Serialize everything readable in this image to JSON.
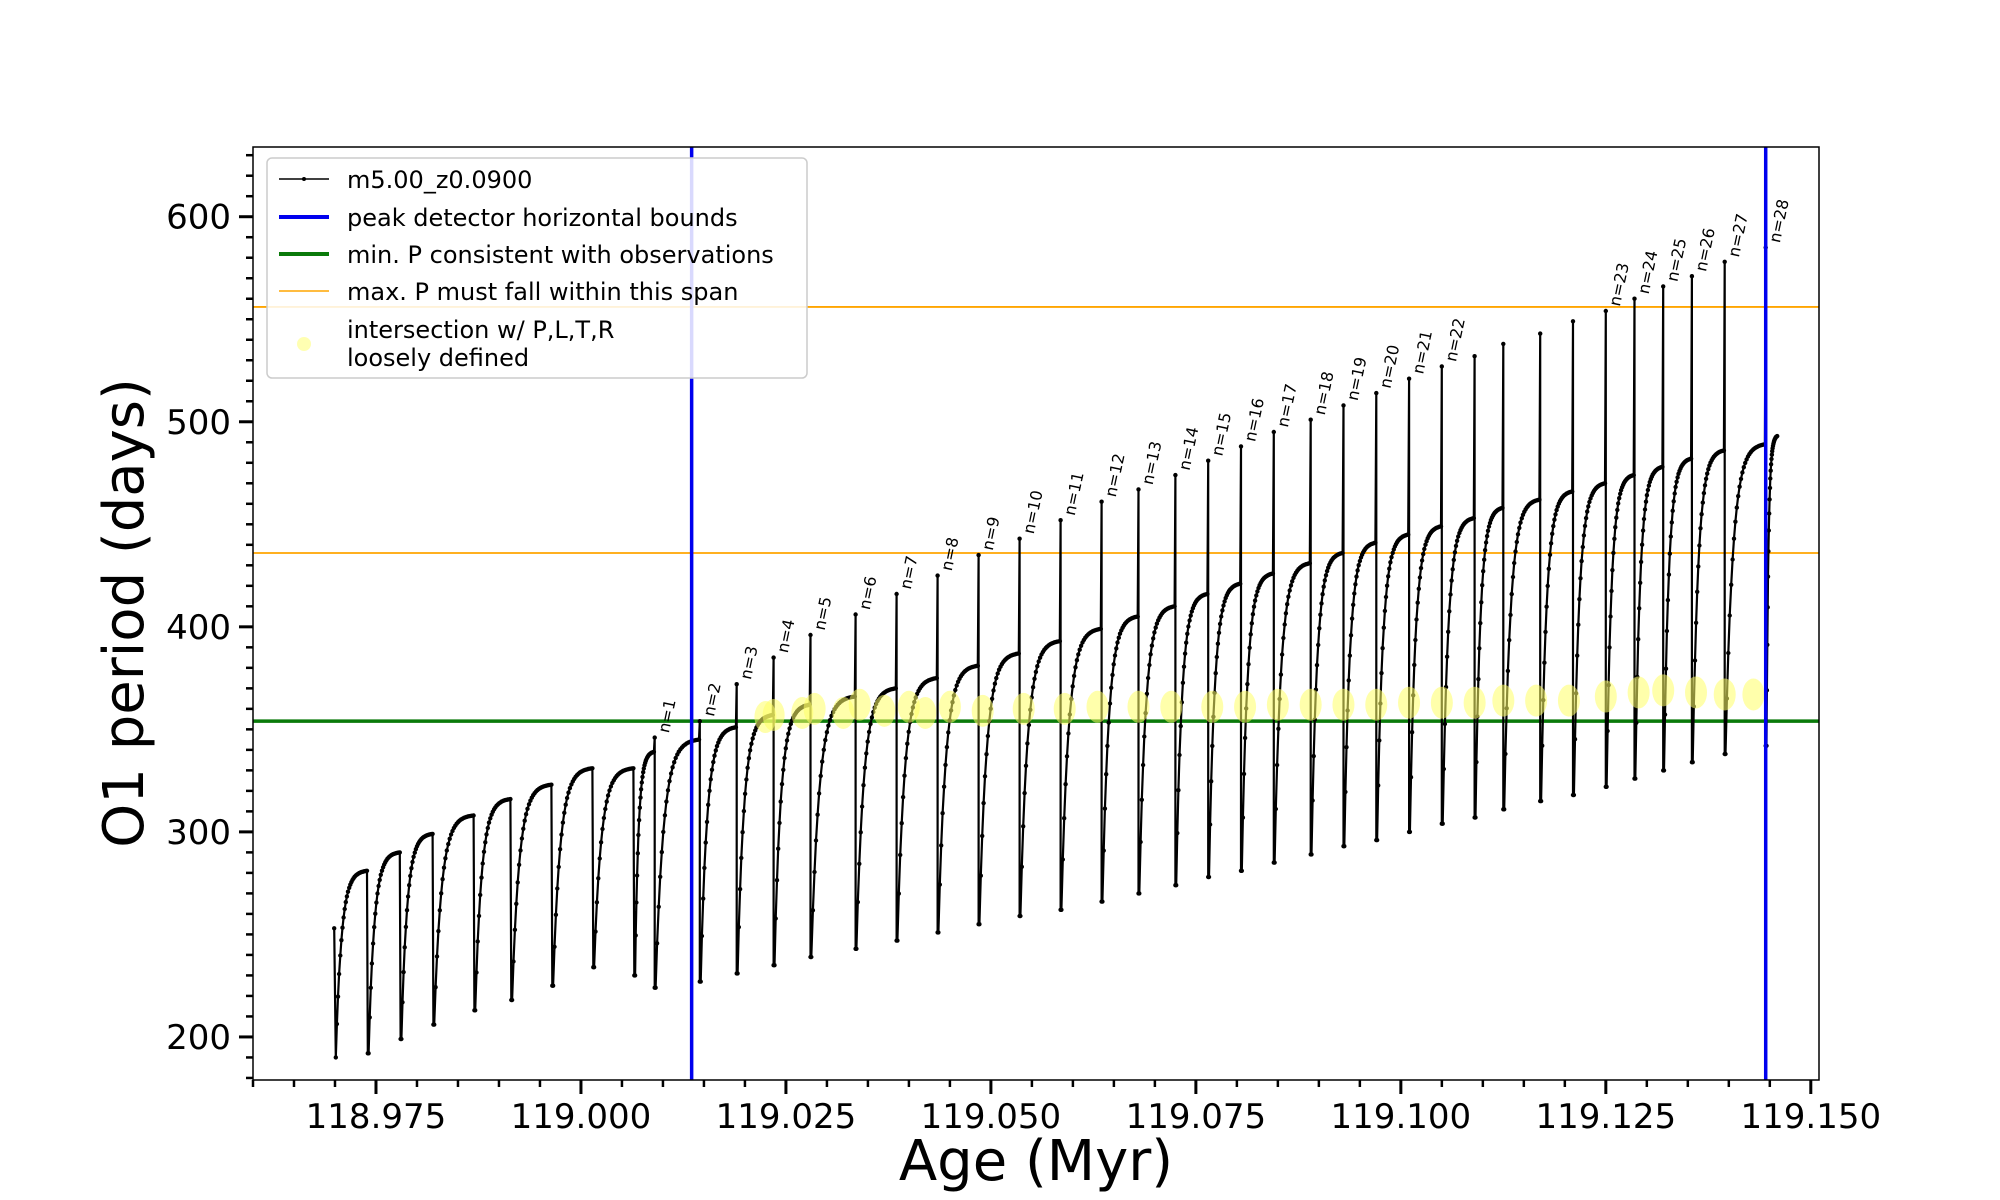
{
  "chart_data": {
    "type": "line",
    "title": "",
    "xlabel": "Age (Myr)",
    "ylabel": "O1 period (days)",
    "xlim": [
      118.96,
      119.151
    ],
    "ylim": [
      179,
      634
    ],
    "xticks": [
      118.975,
      119.0,
      119.025,
      119.05,
      119.075,
      119.1,
      119.125,
      119.15
    ],
    "xtick_labels": [
      "118.975",
      "119.000",
      "119.025",
      "119.050",
      "119.075",
      "119.100",
      "119.125",
      "119.150"
    ],
    "yticks": [
      200,
      300,
      400,
      500,
      600
    ],
    "ytick_labels": [
      "200",
      "300",
      "400",
      "500",
      "600"
    ],
    "grid": false,
    "legend_position": "upper-left",
    "legend": [
      {
        "label": "m5.00_z0.0900",
        "style": "black line with dots",
        "color": "#000000"
      },
      {
        "label": "peak detector horizontal bounds",
        "style": "blue thick line",
        "color": "#0000ee"
      },
      {
        "label": "min. P consistent with observations",
        "style": "green thick line",
        "color": "#0a7a0a"
      },
      {
        "label": "max. P must fall within this span",
        "style": "orange thin line",
        "color": "#ffa500"
      },
      {
        "label_lines": [
          "intersection w/ P,L,T,R",
          "loosely defined"
        ],
        "style": "yellow markers",
        "color": "#ffff66"
      }
    ],
    "vlines": [
      119.0135,
      119.1445
    ],
    "hline_min_P": 354,
    "hlines_max_P_span": [
      436,
      556
    ],
    "pulse_cycles": [
      {
        "n": null,
        "pulse_age": 118.97,
        "min": 190,
        "peak": 281
      },
      {
        "n": null,
        "pulse_age": 118.974,
        "min": 192,
        "peak": 290
      },
      {
        "n": null,
        "pulse_age": 118.978,
        "min": 199,
        "peak": 299
      },
      {
        "n": null,
        "pulse_age": 118.982,
        "min": 206,
        "peak": 308
      },
      {
        "n": null,
        "pulse_age": 118.987,
        "min": 213,
        "peak": 316
      },
      {
        "n": null,
        "pulse_age": 118.9915,
        "min": 218,
        "peak": 323
      },
      {
        "n": null,
        "pulse_age": 118.9965,
        "min": 225,
        "peak": 331
      },
      {
        "n": null,
        "pulse_age": 119.0015,
        "min": 234,
        "peak": 331
      },
      {
        "n": null,
        "pulse_age": 119.0065,
        "min": 230,
        "peak": 339
      },
      {
        "n": "n=1",
        "pulse_age": 119.009,
        "min": 224,
        "peak": 345,
        "spike": 346
      },
      {
        "n": "n=2",
        "pulse_age": 119.0145,
        "min": 227,
        "peak": 351,
        "spike": 354
      },
      {
        "n": "n=3",
        "pulse_age": 119.019,
        "min": 231,
        "peak": 357,
        "spike": 372
      },
      {
        "n": "n=4",
        "pulse_age": 119.0235,
        "min": 235,
        "peak": 362,
        "spike": 385
      },
      {
        "n": "n=5",
        "pulse_age": 119.028,
        "min": 239,
        "peak": 366,
        "spike": 396
      },
      {
        "n": "n=6",
        "pulse_age": 119.0335,
        "min": 243,
        "peak": 370,
        "spike": 406
      },
      {
        "n": "n=7",
        "pulse_age": 119.0385,
        "min": 247,
        "peak": 375,
        "spike": 416
      },
      {
        "n": "n=8",
        "pulse_age": 119.0435,
        "min": 251,
        "peak": 381,
        "spike": 425
      },
      {
        "n": "n=9",
        "pulse_age": 119.0485,
        "min": 255,
        "peak": 387,
        "spike": 435
      },
      {
        "n": "n=10",
        "pulse_age": 119.0535,
        "min": 259,
        "peak": 393,
        "spike": 443
      },
      {
        "n": "n=11",
        "pulse_age": 119.0585,
        "min": 262,
        "peak": 399,
        "spike": 452
      },
      {
        "n": "n=12",
        "pulse_age": 119.0635,
        "min": 266,
        "peak": 405,
        "spike": 461
      },
      {
        "n": "n=13",
        "pulse_age": 119.068,
        "min": 270,
        "peak": 410,
        "spike": 467
      },
      {
        "n": "n=14",
        "pulse_age": 119.0725,
        "min": 274,
        "peak": 416,
        "spike": 474
      },
      {
        "n": "n=15",
        "pulse_age": 119.0765,
        "min": 278,
        "peak": 421,
        "spike": 481
      },
      {
        "n": "n=16",
        "pulse_age": 119.0805,
        "min": 281,
        "peak": 426,
        "spike": 488
      },
      {
        "n": "n=17",
        "pulse_age": 119.0845,
        "min": 285,
        "peak": 431,
        "spike": 495
      },
      {
        "n": "n=18",
        "pulse_age": 119.089,
        "min": 289,
        "peak": 436,
        "spike": 501
      },
      {
        "n": "n=19",
        "pulse_age": 119.093,
        "min": 293,
        "peak": 441,
        "spike": 508
      },
      {
        "n": "n=20",
        "pulse_age": 119.097,
        "min": 296,
        "peak": 445,
        "spike": 514
      },
      {
        "n": "n=21",
        "pulse_age": 119.101,
        "min": 300,
        "peak": 449,
        "spike": 521
      },
      {
        "n": "n=22",
        "pulse_age": 119.105,
        "min": 304,
        "peak": 453,
        "spike": 527
      },
      {
        "n": null,
        "pulse_age": 119.109,
        "min": 307,
        "peak": 458,
        "spike": 532
      },
      {
        "n": null,
        "pulse_age": 119.1125,
        "min": 311,
        "peak": 462,
        "spike": 538
      },
      {
        "n": null,
        "pulse_age": 119.117,
        "min": 315,
        "peak": 466,
        "spike": 543
      },
      {
        "n": null,
        "pulse_age": 119.121,
        "min": 318,
        "peak": 470,
        "spike": 549
      },
      {
        "n": "n=23",
        "pulse_age": 119.125,
        "min": 322,
        "peak": 474,
        "spike": 554
      },
      {
        "n": "n=24",
        "pulse_age": 119.1285,
        "min": 326,
        "peak": 478,
        "spike": 560
      },
      {
        "n": "n=25",
        "pulse_age": 119.132,
        "min": 330,
        "peak": 482,
        "spike": 566
      },
      {
        "n": "n=26",
        "pulse_age": 119.1355,
        "min": 334,
        "peak": 486,
        "spike": 571
      },
      {
        "n": "n=27",
        "pulse_age": 119.1395,
        "min": 338,
        "peak": 489,
        "spike": 578
      },
      {
        "n": "n=28",
        "pulse_age": 119.1445,
        "min": 342,
        "peak": 493,
        "spike": 585
      }
    ],
    "intersection_points": [
      {
        "x": 119.0225,
        "y": 356
      },
      {
        "x": 119.0235,
        "y": 357
      },
      {
        "x": 119.027,
        "y": 358
      },
      {
        "x": 119.0285,
        "y": 360
      },
      {
        "x": 119.032,
        "y": 358
      },
      {
        "x": 119.034,
        "y": 362
      },
      {
        "x": 119.037,
        "y": 359
      },
      {
        "x": 119.04,
        "y": 361
      },
      {
        "x": 119.042,
        "y": 358
      },
      {
        "x": 119.045,
        "y": 361
      },
      {
        "x": 119.049,
        "y": 359
      },
      {
        "x": 119.054,
        "y": 360
      },
      {
        "x": 119.059,
        "y": 360
      },
      {
        "x": 119.063,
        "y": 361
      },
      {
        "x": 119.068,
        "y": 361
      },
      {
        "x": 119.072,
        "y": 361
      },
      {
        "x": 119.077,
        "y": 361
      },
      {
        "x": 119.081,
        "y": 361
      },
      {
        "x": 119.085,
        "y": 362
      },
      {
        "x": 119.089,
        "y": 362
      },
      {
        "x": 119.093,
        "y": 362
      },
      {
        "x": 119.097,
        "y": 362
      },
      {
        "x": 119.101,
        "y": 363
      },
      {
        "x": 119.105,
        "y": 363
      },
      {
        "x": 119.109,
        "y": 363
      },
      {
        "x": 119.1125,
        "y": 364
      },
      {
        "x": 119.1165,
        "y": 364
      },
      {
        "x": 119.1205,
        "y": 364
      },
      {
        "x": 119.125,
        "y": 366
      },
      {
        "x": 119.129,
        "y": 368
      },
      {
        "x": 119.132,
        "y": 369
      },
      {
        "x": 119.136,
        "y": 368
      },
      {
        "x": 119.1395,
        "y": 367
      },
      {
        "x": 119.143,
        "y": 367
      }
    ]
  }
}
